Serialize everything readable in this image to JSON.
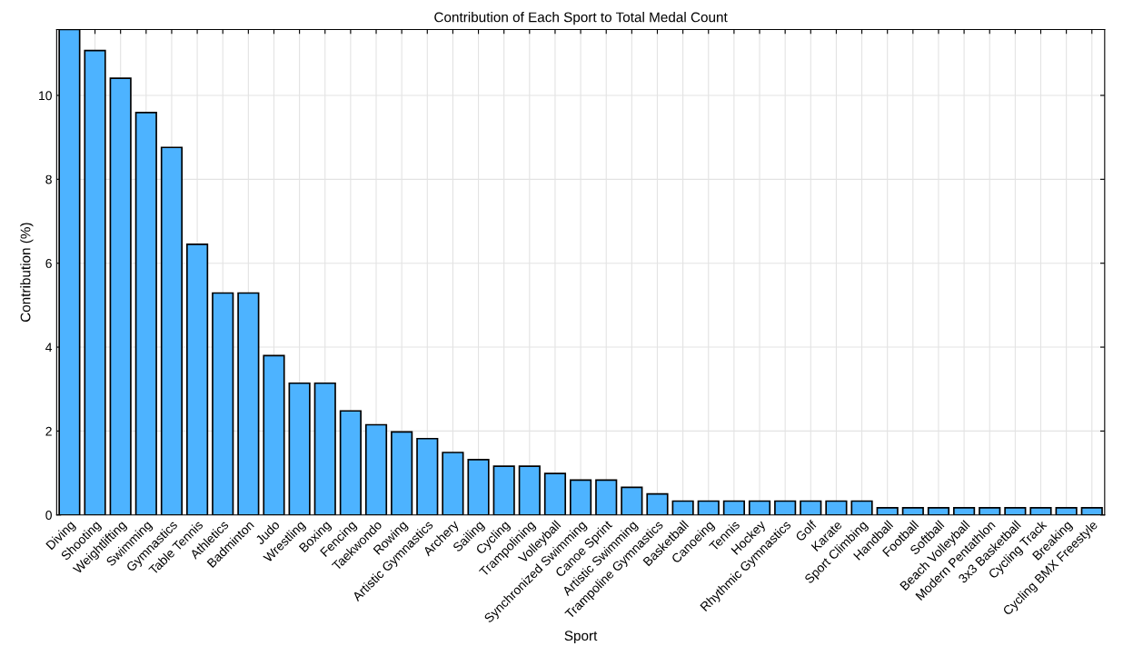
{
  "chart_data": {
    "type": "bar",
    "title": "Contribution of Each Sport to Total Medal Count",
    "xlabel": "Sport",
    "ylabel": "Contribution (%)",
    "categories": [
      "Diving",
      "Shooting",
      "Weightlifting",
      "Swimming",
      "Gymnastics",
      "Table Tennis",
      "Athletics",
      "Badminton",
      "Judo",
      "Wrestling",
      "Boxing",
      "Fencing",
      "Taekwondo",
      "Rowing",
      "Artistic Gymnastics",
      "Archery",
      "Sailing",
      "Cycling",
      "Trampolining",
      "Volleyball",
      "Synchronized Swimming",
      "Canoe Sprint",
      "Artistic Swimming",
      "Trampoline Gymnastics",
      "Basketball",
      "Canoeing",
      "Tennis",
      "Hockey",
      "Rhythmic Gymnastics",
      "Golf",
      "Karate",
      "Sport Climbing",
      "Handball",
      "Football",
      "Softball",
      "Beach Volleyball",
      "Modern Pentathlon",
      "3x3 Basketball",
      "Cycling Track",
      "Breaking",
      "Cycling BMX Freestyle"
    ],
    "values": [
      11.57,
      11.07,
      10.41,
      9.59,
      8.76,
      6.45,
      5.29,
      5.29,
      3.8,
      3.14,
      3.14,
      2.48,
      2.15,
      1.98,
      1.82,
      1.49,
      1.32,
      1.16,
      1.16,
      0.99,
      0.83,
      0.83,
      0.66,
      0.5,
      0.33,
      0.33,
      0.33,
      0.33,
      0.33,
      0.33,
      0.33,
      0.33,
      0.17,
      0.17,
      0.17,
      0.17,
      0.17,
      0.17,
      0.17,
      0.17,
      0.17
    ],
    "color": "#4db3ff",
    "ylim": [
      0,
      11.57
    ],
    "yticks": [
      0,
      2,
      4,
      6,
      8,
      10
    ],
    "grid": true
  }
}
